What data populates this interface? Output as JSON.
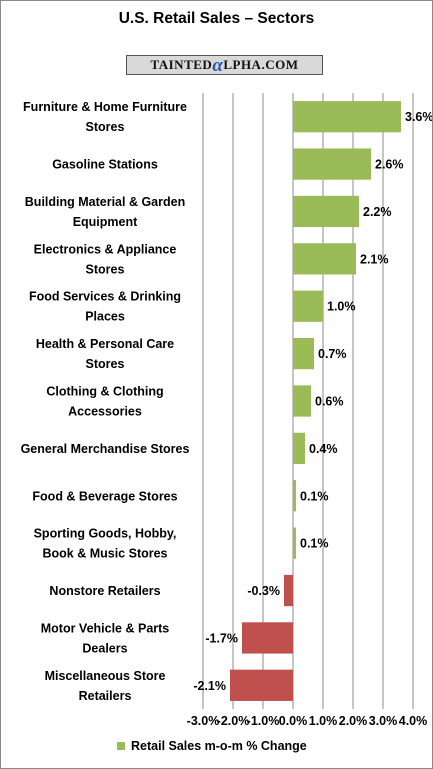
{
  "watermark": {
    "pre": "TAINTED",
    "mark": "α",
    "post": "LPHA.COM"
  },
  "colors": {
    "positive": "#9bbb59",
    "negative": "#c0504d",
    "grid": "#8c8c8c"
  },
  "chart_data": {
    "type": "bar",
    "orientation": "horizontal",
    "title": "U.S. Retail Sales – Sectors",
    "categories": [
      [
        "Furniture & Home Furniture",
        "Stores"
      ],
      [
        "Gasoline Stations"
      ],
      [
        "Building Material & Garden",
        "Equipment"
      ],
      [
        "Electronics & Appliance",
        "Stores"
      ],
      [
        "Food Services & Drinking",
        "Places"
      ],
      [
        "Health & Personal Care",
        "Stores"
      ],
      [
        "Clothing & Clothing",
        "Accessories"
      ],
      [
        "General Merchandise Stores"
      ],
      [
        "Food & Beverage Stores"
      ],
      [
        "Sporting Goods, Hobby,",
        "Book & Music Stores"
      ],
      [
        "Nonstore Retailers"
      ],
      [
        "Motor Vehicle & Parts",
        "Dealers"
      ],
      [
        "Miscellaneous Store",
        "Retailers"
      ]
    ],
    "values": [
      3.6,
      2.6,
      2.2,
      2.1,
      1.0,
      0.7,
      0.6,
      0.4,
      0.1,
      0.1,
      -0.3,
      -1.7,
      -2.1
    ],
    "data_labels": [
      "3.6%",
      "2.6%",
      "2.2%",
      "2.1%",
      "1.0%",
      "0.7%",
      "0.6%",
      "0.4%",
      "0.1%",
      "0.1%",
      "-0.3%",
      "-1.7%",
      "-2.1%"
    ],
    "xlim": [
      -3.0,
      4.0
    ],
    "x_ticks": [
      -3.0,
      -2.0,
      -1.0,
      0.0,
      1.0,
      2.0,
      3.0,
      4.0
    ],
    "x_tick_labels": [
      "-3.0%",
      "-2.0%",
      "-1.0%",
      "0.0%",
      "1.0%",
      "2.0%",
      "3.0%",
      "4.0%"
    ],
    "grid": true,
    "legend": {
      "position": "bottom",
      "label": "Retail Sales m-o-m % Change"
    }
  }
}
